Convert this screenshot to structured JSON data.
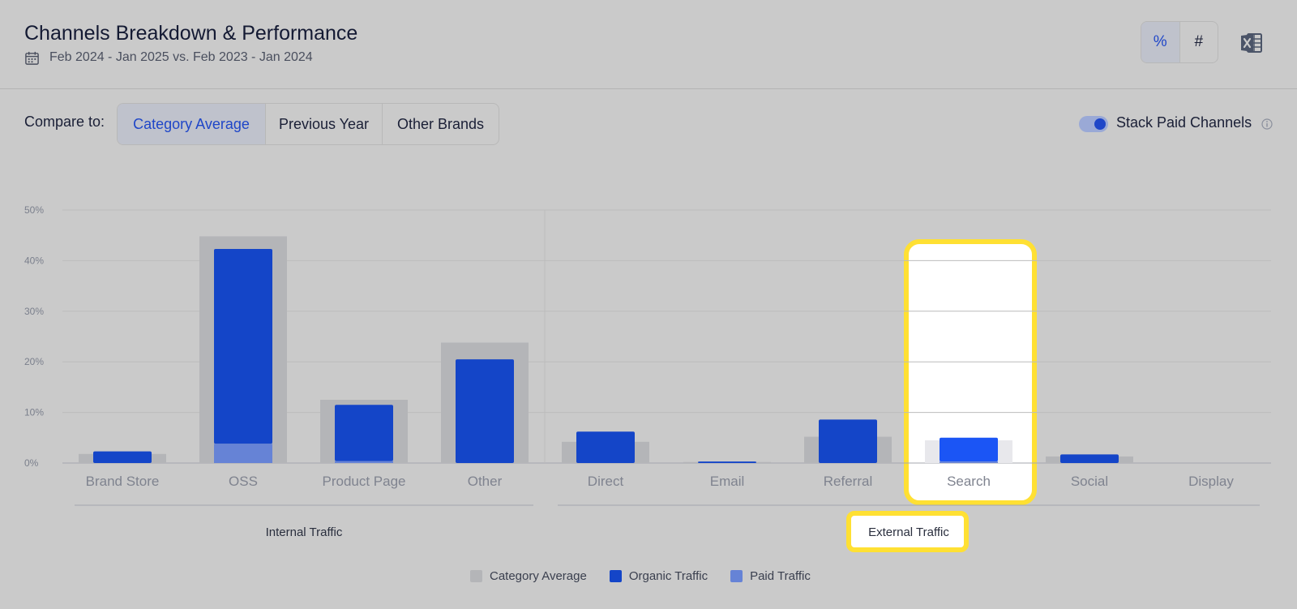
{
  "header": {
    "title": "Channels Breakdown & Performance",
    "date_range": "Feb 2024 - Jan 2025 vs. Feb 2023 - Jan 2024",
    "calendar_icon": "calendar-icon",
    "unit_toggle": {
      "percent_label": "%",
      "number_label": "#",
      "active": "percent"
    },
    "export_icon": "excel-icon"
  },
  "compare": {
    "label": "Compare to:",
    "options": [
      "Category Average",
      "Previous Year",
      "Other Brands"
    ],
    "active": "Category Average"
  },
  "stack_paid": {
    "label": "Stack Paid Channels",
    "enabled": true,
    "info_icon": "info-icon"
  },
  "colors": {
    "category_average": "#b4b5b8",
    "organic": "#1445c8",
    "paid": "#6683d6",
    "highlight_organic": "#1b55f5",
    "highlight_ring": "#ffe033"
  },
  "chart_data": {
    "type": "bar",
    "categories": [
      "Brand Store",
      "OSS",
      "Product Page",
      "Other",
      "Direct",
      "Email",
      "Referral",
      "Search",
      "Social",
      "Display"
    ],
    "groups": [
      {
        "label": "Internal Traffic",
        "categories": [
          "Brand Store",
          "OSS",
          "Product Page",
          "Other"
        ]
      },
      {
        "label": "External Traffic",
        "categories": [
          "Direct",
          "Email",
          "Referral",
          "Search",
          "Social",
          "Display"
        ]
      }
    ],
    "series": [
      {
        "name": "Category Average",
        "values": [
          1.8,
          44.8,
          12.5,
          23.8,
          4.2,
          0.2,
          5.2,
          4.5,
          1.3,
          0
        ]
      },
      {
        "name": "Organic Traffic",
        "values": [
          2.3,
          38.5,
          11.1,
          20.5,
          6.2,
          0.3,
          8.6,
          4.7,
          1.7,
          0
        ]
      },
      {
        "name": "Paid Traffic",
        "values": [
          0,
          3.8,
          0.4,
          0,
          0,
          0,
          0,
          0.3,
          0,
          0
        ]
      }
    ],
    "highlighted_category": "Search",
    "highlighted_group": "External Traffic",
    "yticks": [
      "0%",
      "10%",
      "20%",
      "30%",
      "40%",
      "50%"
    ],
    "ylim": [
      0,
      50
    ],
    "grid": true,
    "legend_position": "bottom-center"
  }
}
